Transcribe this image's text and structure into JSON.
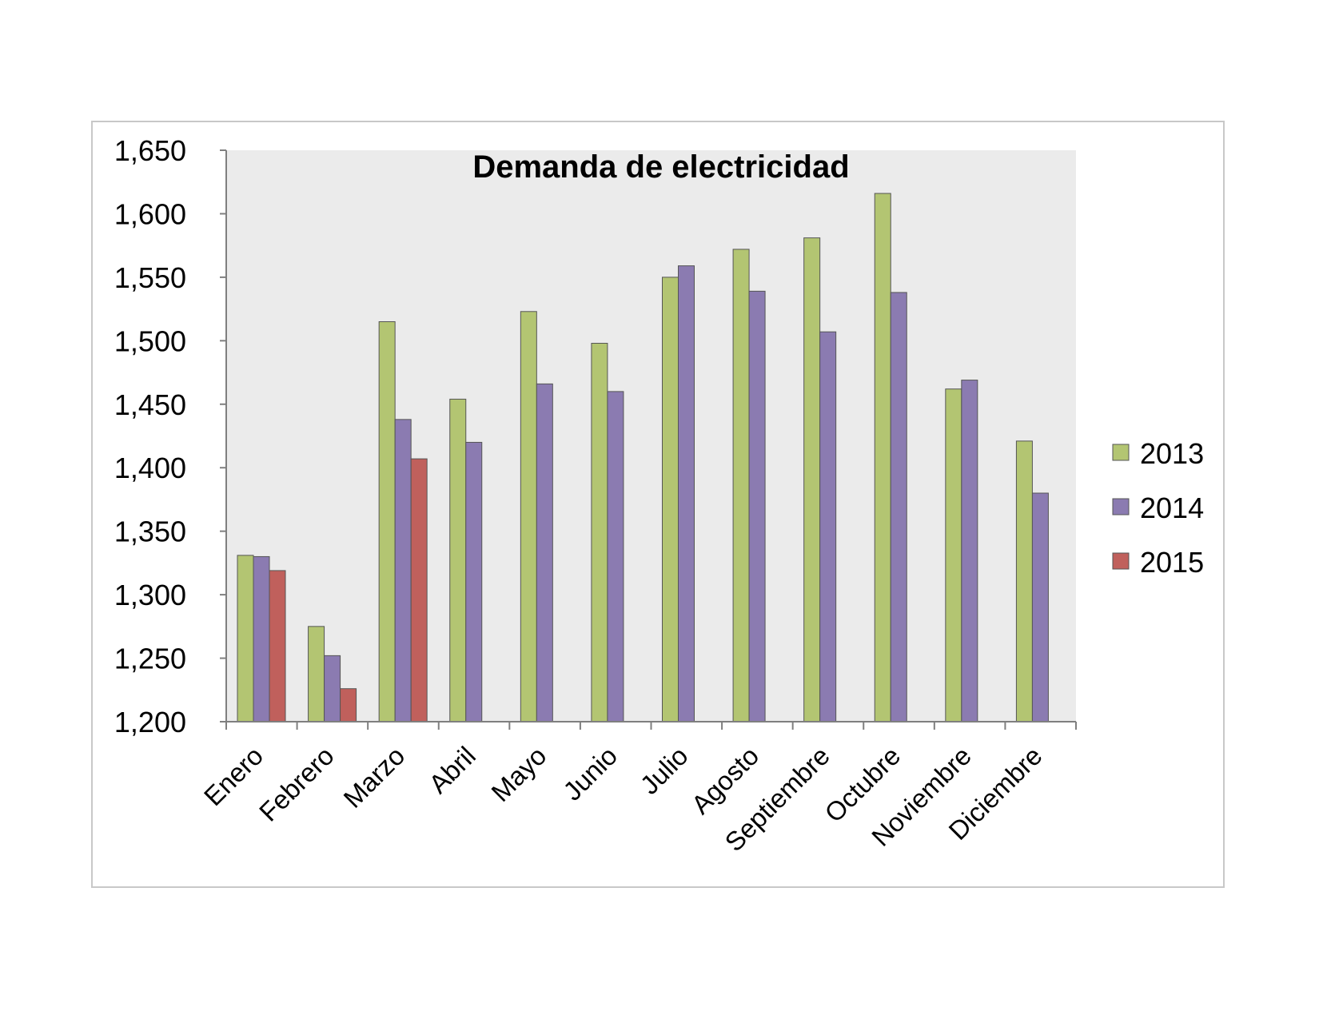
{
  "chart_data": {
    "type": "bar",
    "title": "Demanda de electricidad",
    "xlabel": "",
    "ylabel": "",
    "ylim": [
      1200,
      1650
    ],
    "yticks": [
      1200,
      1250,
      1300,
      1350,
      1400,
      1450,
      1500,
      1550,
      1600,
      1650
    ],
    "ytick_labels": [
      "1,200",
      "1,250",
      "1,300",
      "1,350",
      "1,400",
      "1,450",
      "1,500",
      "1,550",
      "1,600",
      "1,650"
    ],
    "categories": [
      "Enero",
      "Febrero",
      "Marzo",
      "Abril",
      "Mayo",
      "Junio",
      "Julio",
      "Agosto",
      "Septiembre",
      "Octubre",
      "Noviembre",
      "Diciembre"
    ],
    "series": [
      {
        "name": "2013",
        "color": "#b3c572",
        "values": [
          1331,
          1275,
          1515,
          1454,
          1523,
          1498,
          1550,
          1572,
          1581,
          1616,
          1462,
          1421
        ]
      },
      {
        "name": "2014",
        "color": "#8b7bb1",
        "values": [
          1330,
          1252,
          1438,
          1420,
          1466,
          1460,
          1559,
          1539,
          1507,
          1538,
          1469,
          1380
        ]
      },
      {
        "name": "2015",
        "color": "#c0605c",
        "values": [
          1319,
          1226,
          1407,
          null,
          null,
          null,
          null,
          null,
          null,
          null,
          null,
          null
        ]
      }
    ],
    "grid": false,
    "plot_background": "#ebebeb",
    "legend_position": "right"
  }
}
